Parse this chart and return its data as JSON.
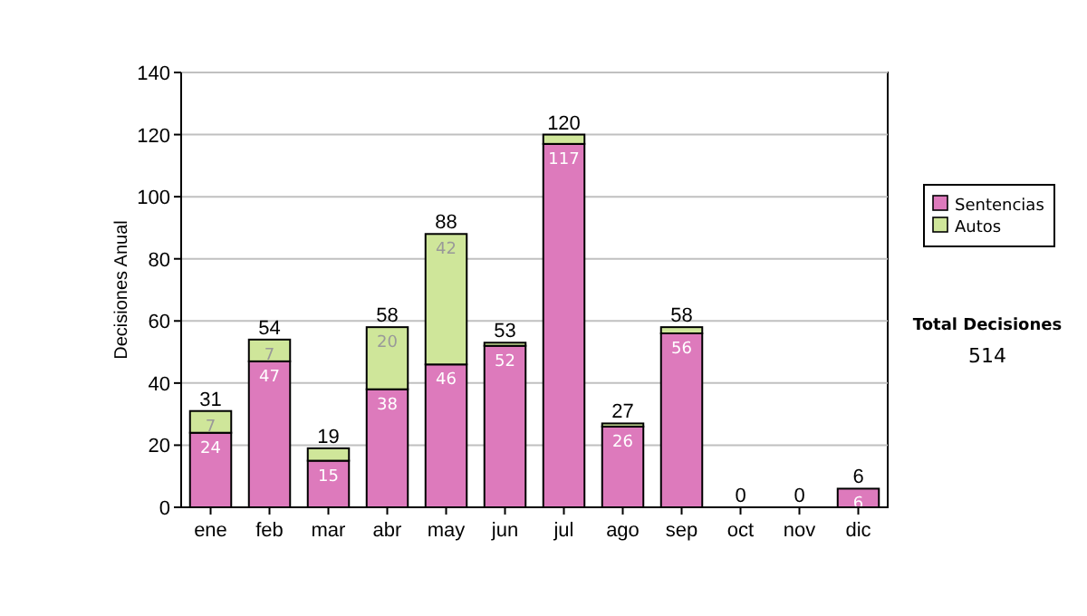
{
  "chart_data": {
    "type": "bar",
    "stacked": true,
    "ylabel": "Decisiones Anual",
    "categories": [
      "ene",
      "feb",
      "mar",
      "abr",
      "may",
      "jun",
      "jul",
      "ago",
      "sep",
      "oct",
      "nov",
      "dic"
    ],
    "series": [
      {
        "name": "Sentencias",
        "color": "#dd7abc",
        "values": [
          24,
          47,
          15,
          38,
          46,
          52,
          117,
          26,
          56,
          0,
          0,
          6
        ],
        "value_labels": [
          "24",
          "47",
          "15",
          "38",
          "46",
          "52",
          "117",
          "26",
          "56",
          null,
          null,
          "6"
        ]
      },
      {
        "name": "Autos",
        "color": "#cfe69a",
        "values": [
          7,
          7,
          4,
          20,
          42,
          1,
          3,
          1,
          2,
          0,
          0,
          0
        ],
        "value_labels": [
          "7",
          "7",
          null,
          "20",
          "42",
          null,
          null,
          null,
          null,
          null,
          null,
          null
        ]
      }
    ],
    "totals": [
      "31",
      "54",
      "19",
      "58",
      "88",
      "53",
      "120",
      "27",
      "58",
      "0",
      "0",
      "6"
    ],
    "ylim": [
      0,
      140
    ],
    "yticks": [
      0,
      20,
      40,
      60,
      80,
      100,
      120,
      140
    ],
    "grid": "y",
    "legend": "right",
    "annotations": [
      "Total Decisiones",
      "514"
    ]
  }
}
